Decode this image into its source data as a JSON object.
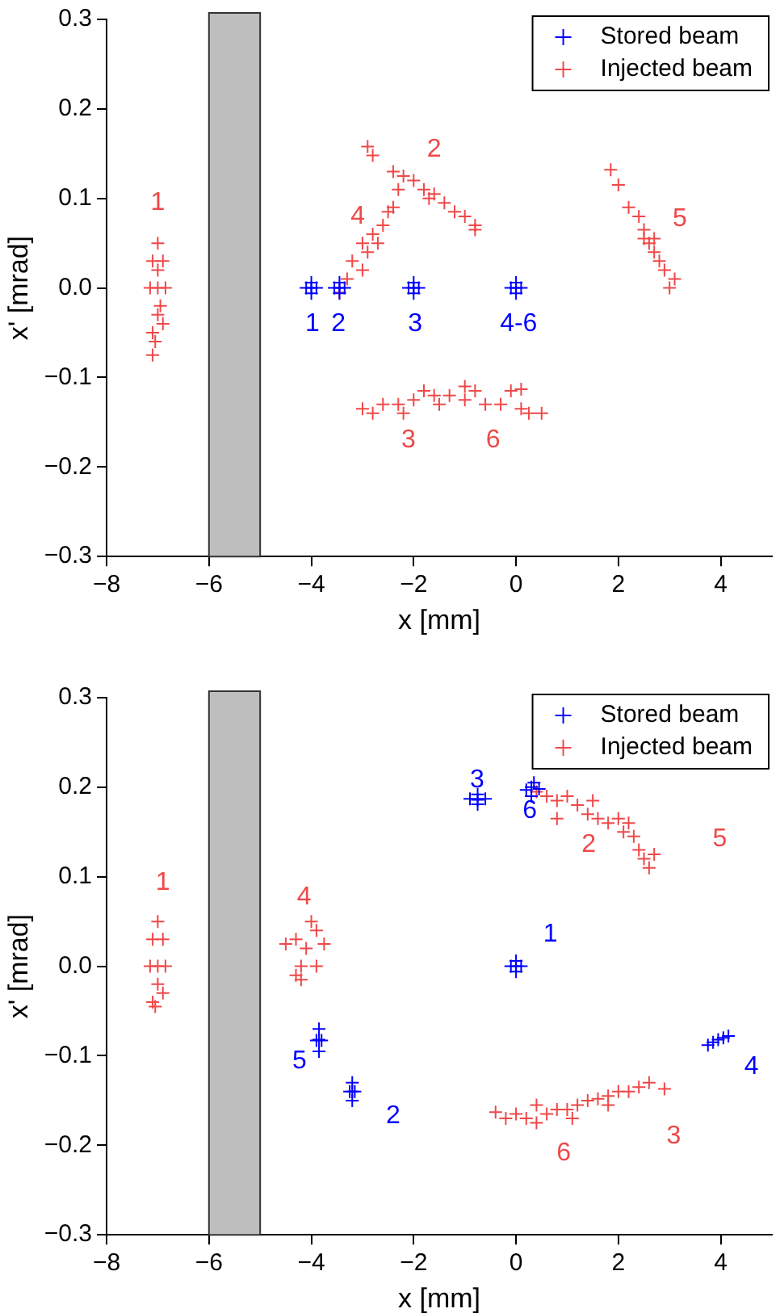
{
  "chart_data": [
    {
      "type": "scatter",
      "xlabel": "x [mm]",
      "ylabel": "x' [mrad]",
      "xlim": [
        -8,
        5
      ],
      "ylim": [
        -0.3,
        0.3
      ],
      "xticks": [
        {
          "value": -8,
          "label": "−8"
        },
        {
          "value": -6,
          "label": "−6"
        },
        {
          "value": -4,
          "label": "−4"
        },
        {
          "value": -2,
          "label": "−2"
        },
        0,
        2,
        4
      ],
      "yticks": [
        {
          "value": -0.3,
          "label": "−0.3"
        },
        {
          "value": -0.2,
          "label": "−0.2"
        },
        {
          "value": -0.1,
          "label": "−0.1"
        },
        {
          "value": 0,
          "label": "0.0"
        },
        0.1,
        0.2,
        0.3
      ],
      "grid": false,
      "legend": "top right",
      "marker": "cross",
      "bands": [
        {
          "axis": "x",
          "from": -6,
          "to": -5,
          "color": "#bebebe"
        }
      ],
      "series": [
        {
          "name": "Stored beam",
          "color": "#0000ff",
          "x": [
            -4.1,
            -4.0,
            -3.9,
            -4.0,
            -4.0,
            -3.55,
            -3.45,
            -3.35,
            -3.45,
            -3.45,
            -2.1,
            -2.0,
            -1.9,
            -2.0,
            -2.0,
            -0.1,
            0.0,
            0.1,
            0.0,
            0.0
          ],
          "values": [
            0,
            0,
            0,
            0.006,
            -0.006,
            0,
            0,
            0,
            0.006,
            -0.006,
            0,
            0,
            0,
            0.006,
            -0.006,
            0,
            0,
            0,
            0.006,
            -0.006
          ]
        },
        {
          "name": "Injected beam",
          "color": "#f04848",
          "x": [
            -7.0,
            -7.1,
            -6.9,
            -7.0,
            -7.15,
            -6.85,
            -7.0,
            -6.9,
            -7.1,
            -7.05,
            -7.1,
            -7.0,
            -6.95,
            -2.9,
            -2.8,
            -2.4,
            -2.2,
            -2.0,
            -1.8,
            -1.6,
            -1.4,
            -1.2,
            -1.0,
            -0.8,
            -0.8,
            -2.3,
            -1.7,
            -3.2,
            -3.0,
            -3.0,
            -2.8,
            -2.6,
            -2.5,
            -2.4,
            -2.9,
            -2.7,
            -3.3,
            -3.45,
            1.85,
            2.0,
            2.2,
            2.4,
            2.5,
            2.6,
            2.7,
            2.8,
            2.9,
            3.1,
            3.0,
            2.5,
            2.7,
            -3.0,
            -2.8,
            -2.6,
            -2.3,
            -2.0,
            -1.8,
            -1.6,
            -1.3,
            -1.0,
            -0.8,
            -0.6,
            -0.3,
            -0.1,
            0.1,
            0.1,
            0.25,
            0.5,
            -1.5,
            -2.2,
            -1.0
          ],
          "values": [
            0.05,
            0.03,
            0.03,
            0.0,
            0.0,
            0.0,
            -0.03,
            -0.04,
            -0.05,
            -0.06,
            -0.075,
            0.02,
            -0.02,
            0.158,
            0.148,
            0.13,
            0.125,
            0.12,
            0.11,
            0.105,
            0.095,
            0.085,
            0.08,
            0.07,
            0.065,
            0.11,
            0.1,
            0.03,
            0.02,
            0.05,
            0.06,
            0.07,
            0.085,
            0.09,
            0.04,
            0.05,
            0.01,
            -0.005,
            0.132,
            0.115,
            0.09,
            0.08,
            0.065,
            0.05,
            0.04,
            0.03,
            0.02,
            0.01,
            0.0,
            0.055,
            0.055,
            -0.135,
            -0.14,
            -0.13,
            -0.13,
            -0.125,
            -0.115,
            -0.12,
            -0.12,
            -0.125,
            -0.115,
            -0.13,
            -0.13,
            -0.115,
            -0.113,
            -0.135,
            -0.14,
            -0.14,
            -0.13,
            -0.14,
            -0.11
          ]
        }
      ],
      "annotations": [
        "1",
        "2",
        "4",
        "5",
        "3",
        "6",
        "1",
        "2",
        "3",
        "4-6"
      ]
    },
    {
      "type": "scatter",
      "xlabel": "x [mm]",
      "ylabel": "x' [mrad]",
      "xlim": [
        -8,
        5
      ],
      "ylim": [
        -0.3,
        0.3
      ],
      "xticks": [
        {
          "value": -8,
          "label": "−8"
        },
        {
          "value": -6,
          "label": "−6"
        },
        {
          "value": -4,
          "label": "−4"
        },
        {
          "value": -2,
          "label": "−2"
        },
        0,
        2,
        4
      ],
      "yticks": [
        {
          "value": -0.3,
          "label": "−0.3"
        },
        {
          "value": -0.2,
          "label": "−0.2"
        },
        {
          "value": -0.1,
          "label": "−0.1"
        },
        {
          "value": 0,
          "label": "0.0"
        },
        0.1,
        0.2,
        0.3
      ],
      "grid": false,
      "legend": "top right",
      "marker": "cross",
      "bands": [
        {
          "axis": "x",
          "from": -6,
          "to": -5,
          "color": "#bebebe"
        }
      ],
      "series": [
        {
          "name": "Stored beam",
          "color": "#0000ff",
          "x": [
            -0.9,
            -0.75,
            -0.6,
            -0.75,
            -0.75,
            0.2,
            0.3,
            0.45,
            0.3,
            0.35,
            -0.1,
            0.0,
            0.1,
            0.0,
            0.0,
            -3.9,
            -3.85,
            -3.8,
            -3.85,
            -3.85,
            -3.25,
            -3.2,
            -3.15,
            -3.2,
            -3.2,
            3.75,
            3.85,
            3.95,
            4.05,
            4.15
          ],
          "values": [
            0.187,
            0.186,
            0.187,
            0.192,
            0.181,
            0.197,
            0.2,
            0.198,
            0.19,
            0.205,
            0,
            0,
            0,
            0.006,
            -0.006,
            -0.083,
            -0.082,
            -0.083,
            -0.07,
            -0.095,
            -0.14,
            -0.14,
            -0.14,
            -0.13,
            -0.15,
            -0.088,
            -0.085,
            -0.082,
            -0.08,
            -0.078
          ]
        },
        {
          "name": "Injected beam",
          "color": "#f04848",
          "x": [
            -7.0,
            -7.1,
            -6.9,
            -7.0,
            -7.15,
            -6.85,
            -7.0,
            -6.9,
            -7.1,
            -7.05,
            -4.5,
            -4.3,
            -4.1,
            -3.9,
            -3.75,
            -4.2,
            -4.0,
            -4.3,
            -3.9,
            -4.2,
            0.4,
            0.6,
            0.8,
            1.0,
            1.2,
            1.4,
            1.5,
            1.6,
            1.8,
            2.0,
            2.1,
            2.3,
            2.4,
            2.5,
            2.6,
            2.7,
            0.8,
            2.2,
            -0.4,
            -0.2,
            0,
            0.2,
            0.4,
            0.6,
            0.8,
            1.0,
            1.2,
            1.4,
            1.6,
            1.8,
            2.0,
            2.2,
            2.4,
            2.6,
            2.9,
            1.1,
            1.8,
            0.4
          ],
          "values": [
            0.05,
            0.03,
            0.03,
            0.0,
            0.0,
            0.0,
            -0.02,
            -0.03,
            -0.04,
            -0.045,
            0.025,
            0.03,
            0.02,
            0.04,
            0.025,
            0.0,
            0.05,
            -0.01,
            0.0,
            -0.015,
            0.195,
            0.19,
            0.185,
            0.19,
            0.18,
            0.17,
            0.185,
            0.165,
            0.16,
            0.165,
            0.15,
            0.145,
            0.13,
            0.12,
            0.11,
            0.125,
            0.165,
            0.16,
            -0.163,
            -0.17,
            -0.165,
            -0.17,
            -0.175,
            -0.165,
            -0.16,
            -0.16,
            -0.155,
            -0.15,
            -0.148,
            -0.145,
            -0.14,
            -0.14,
            -0.135,
            -0.13,
            -0.137,
            -0.17,
            -0.155,
            -0.155
          ]
        }
      ],
      "annotations": [
        "3",
        "6",
        "1",
        "5",
        "2",
        "4",
        "1",
        "4",
        "2",
        "5",
        "3",
        "6"
      ]
    }
  ]
}
